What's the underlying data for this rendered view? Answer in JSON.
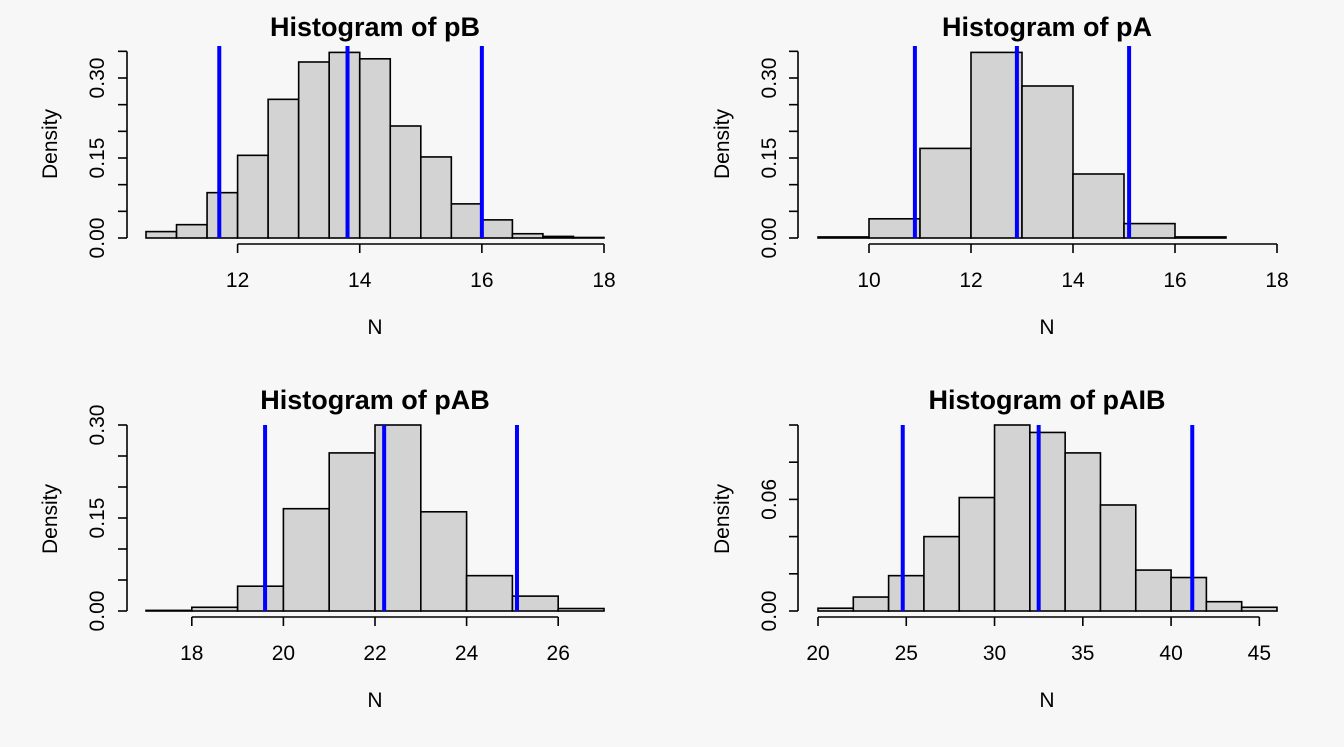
{
  "chart_data": [
    {
      "type": "bar",
      "title": "Histogram of pB",
      "xlabel": "N",
      "ylabel": "Density",
      "xlim": [
        10.5,
        18
      ],
      "ylim": [
        0,
        0.36
      ],
      "xticks": [
        12,
        14,
        16,
        18
      ],
      "yticks": [
        0.0,
        0.15,
        0.3
      ],
      "yminor": [
        0.05,
        0.1,
        0.2,
        0.25,
        0.35
      ],
      "ytick_labels": [
        "0.00",
        "0.15",
        "0.30"
      ],
      "bin_edges": [
        10.5,
        11,
        11.5,
        12,
        12.5,
        13,
        13.5,
        14,
        14.5,
        15,
        15.5,
        16,
        16.5,
        17,
        17.5,
        18
      ],
      "values": [
        0.012,
        0.025,
        0.085,
        0.155,
        0.26,
        0.33,
        0.348,
        0.336,
        0.21,
        0.152,
        0.064,
        0.034,
        0.008,
        0.003,
        0.001
      ],
      "vlines": [
        11.7,
        13.8,
        16.0
      ],
      "vline_color": "#0000ff"
    },
    {
      "type": "bar",
      "title": "Histogram of pA",
      "xlabel": "N",
      "ylabel": "Density",
      "xlim": [
        9,
        18
      ],
      "ylim": [
        0,
        0.36
      ],
      "xticks": [
        10,
        12,
        14,
        16,
        18
      ],
      "yticks": [
        0.0,
        0.15,
        0.3
      ],
      "yminor": [
        0.05,
        0.1,
        0.2,
        0.25,
        0.35
      ],
      "ytick_labels": [
        "0.00",
        "0.15",
        "0.30"
      ],
      "bin_edges": [
        9,
        10,
        11,
        12,
        13,
        14,
        15,
        16,
        17,
        18
      ],
      "values": [
        0.002,
        0.036,
        0.168,
        0.348,
        0.285,
        0.12,
        0.027,
        0.002,
        0.0
      ],
      "vlines": [
        10.9,
        12.9,
        15.1
      ],
      "vline_color": "#0000ff"
    },
    {
      "type": "bar",
      "title": "Histogram of pAB",
      "xlabel": "N",
      "ylabel": "Density",
      "xlim": [
        17,
        27
      ],
      "ylim": [
        0,
        0.3
      ],
      "xticks": [
        18,
        20,
        22,
        24,
        26
      ],
      "yticks": [
        0.0,
        0.15,
        0.3
      ],
      "yminor": [
        0.05,
        0.1,
        0.2,
        0.25
      ],
      "ytick_labels": [
        "0.00",
        "0.15",
        "0.30"
      ],
      "bin_edges": [
        17,
        18,
        19,
        20,
        21,
        22,
        23,
        24,
        25,
        26,
        27
      ],
      "values": [
        0.001,
        0.006,
        0.04,
        0.165,
        0.255,
        0.3,
        0.16,
        0.057,
        0.024,
        0.004
      ],
      "vlines": [
        19.6,
        22.2,
        25.1
      ],
      "vline_color": "#0000ff"
    },
    {
      "type": "bar",
      "title": "Histogram of pAIB",
      "xlabel": "N",
      "ylabel": "Density",
      "xlim": [
        20,
        46
      ],
      "ylim": [
        0,
        0.1
      ],
      "xticks": [
        20,
        25,
        30,
        35,
        40,
        45
      ],
      "yticks": [
        0.0,
        0.06
      ],
      "yminor": [
        0.02,
        0.04,
        0.08,
        0.1
      ],
      "ytick_labels": [
        "0.00",
        "0.06"
      ],
      "bin_edges": [
        20,
        22,
        24,
        26,
        28,
        30,
        32,
        34,
        36,
        38,
        40,
        42,
        44,
        46
      ],
      "values": [
        0.0015,
        0.0075,
        0.019,
        0.04,
        0.061,
        0.1,
        0.096,
        0.085,
        0.057,
        0.022,
        0.018,
        0.005,
        0.002
      ],
      "vlines": [
        24.8,
        32.5,
        41.2
      ],
      "vline_color": "#0000ff"
    }
  ]
}
